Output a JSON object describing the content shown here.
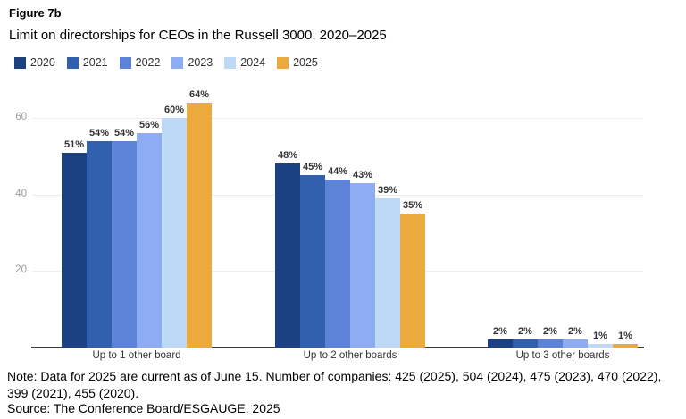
{
  "figure_label": "Figure 7b",
  "title": "Limit on directorships for CEOs in the Russell 3000, 2020–2025",
  "note": "Note: Data for 2025 are current as of June 15. Number of companies: 425 (2025), 504 (2024), 475 (2023), 470 (2022), 399 (2021), 455 (2020).",
  "source": "Source: The Conference Board/ESGAUGE, 2025",
  "chart_data": {
    "type": "bar",
    "title": "Limit on directorships for CEOs in the Russell 3000, 2020–2025",
    "categories": [
      "Up to 1 other board",
      "Up to 2 other boards",
      "Up to 3 other boards"
    ],
    "series": [
      {
        "name": "2020",
        "color": "#1c4182",
        "values": [
          51,
          48,
          2
        ]
      },
      {
        "name": "2021",
        "color": "#3060ae",
        "values": [
          54,
          45,
          2
        ]
      },
      {
        "name": "2022",
        "color": "#5d83d8",
        "values": [
          54,
          44,
          2
        ]
      },
      {
        "name": "2023",
        "color": "#8eacf1",
        "values": [
          56,
          43,
          2
        ]
      },
      {
        "name": "2024",
        "color": "#bed9f5",
        "values": [
          60,
          39,
          1
        ]
      },
      {
        "name": "2025",
        "color": "#eca93e",
        "values": [
          64,
          35,
          1
        ]
      }
    ],
    "value_suffix": "%",
    "xlabel": "",
    "ylabel": "",
    "yticks": [
      20,
      40,
      60
    ],
    "ylim": [
      0,
      67
    ],
    "grid": true,
    "legend_position": "top-left",
    "tick_color": "#9e9e9e",
    "grid_color": "#ededed",
    "baseline_color": "#3b3b3b"
  }
}
